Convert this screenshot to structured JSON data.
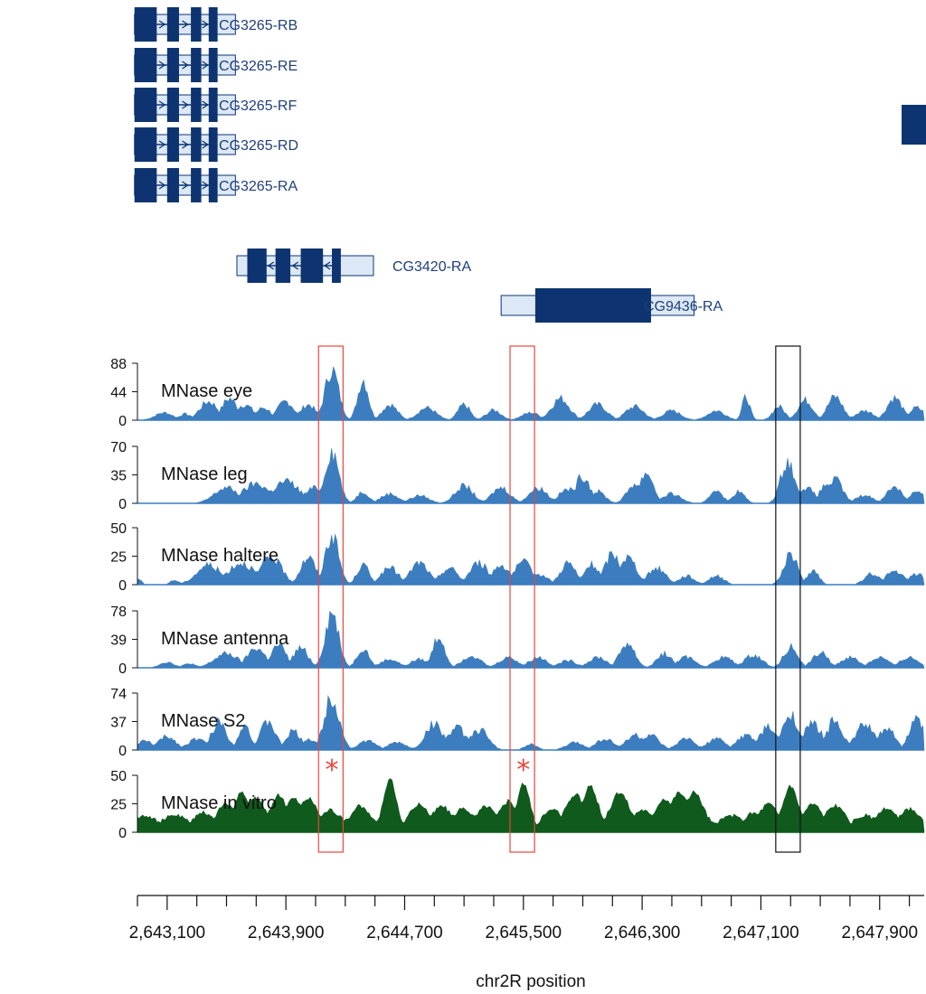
{
  "chart_data": {
    "type": "area",
    "chromosome": "chr2R",
    "xlabel": "chr2R position",
    "xlim": [
      2642900,
      2648200
    ],
    "x_tick_labels": [
      "2,643,100",
      "2,643,900",
      "2,644,700",
      "2,645,500",
      "2,646,300",
      "2,647,100",
      "2,647,900"
    ],
    "x_tick_values": [
      2643100,
      2643900,
      2644700,
      2645500,
      2646300,
      2647100,
      2647900
    ],
    "colors": {
      "gene": "#0d3470",
      "utr_fill": "#dce8f6",
      "tissue": "#3c7dbf",
      "in_vitro": "#0f5a1c",
      "highlight_red": "#e8453c",
      "highlight_black": "#111111"
    },
    "genes": [
      {
        "name": "CG3265-RB",
        "strand": "+",
        "start": 2642880,
        "end": 2643560,
        "cds": [
          [
            2642880,
            2643030
          ],
          [
            2643100,
            2643180
          ],
          [
            2643260,
            2643330
          ],
          [
            2643380,
            2643440
          ]
        ]
      },
      {
        "name": "CG3265-RE",
        "strand": "+",
        "start": 2642880,
        "end": 2643560,
        "cds": [
          [
            2642880,
            2643030
          ],
          [
            2643100,
            2643180
          ],
          [
            2643260,
            2643330
          ],
          [
            2643380,
            2643440
          ]
        ]
      },
      {
        "name": "CG3265-RF",
        "strand": "+",
        "start": 2642880,
        "end": 2643560,
        "cds": [
          [
            2642880,
            2643030
          ],
          [
            2643100,
            2643180
          ],
          [
            2643260,
            2643330
          ],
          [
            2643380,
            2643440
          ]
        ]
      },
      {
        "name": "CG3265-RD",
        "strand": "+",
        "start": 2642880,
        "end": 2643560,
        "cds": [
          [
            2642880,
            2643030
          ],
          [
            2643100,
            2643180
          ],
          [
            2643260,
            2643330
          ],
          [
            2643380,
            2643440
          ]
        ]
      },
      {
        "name": "CG3265-RA",
        "strand": "+",
        "start": 2642880,
        "end": 2643560,
        "cds": [
          [
            2642880,
            2643030
          ],
          [
            2643100,
            2643180
          ],
          [
            2643260,
            2643330
          ],
          [
            2643380,
            2643440
          ]
        ]
      },
      {
        "name": "CG3420-RA",
        "strand": "-",
        "start": 2643570,
        "end": 2644490,
        "cds": [
          [
            2643640,
            2643770
          ],
          [
            2643830,
            2643930
          ],
          [
            2644000,
            2644150
          ],
          [
            2644210,
            2644270
          ]
        ]
      },
      {
        "name": "CG9436-RA",
        "strand": "+",
        "start": 2645350,
        "end": 2646650,
        "cds": [
          [
            2645580,
            2646360
          ]
        ]
      }
    ],
    "off_screen_gene_block": {
      "start": 2648080,
      "end": 2648300
    },
    "tracks": [
      {
        "name": "MNase eye",
        "ticks": [
          0,
          44,
          88
        ],
        "ymax": 88,
        "color": "tissue",
        "peaks": [
          [
            2643080,
            12,
            60
          ],
          [
            2643220,
            10,
            40
          ],
          [
            2643380,
            30,
            60
          ],
          [
            2643520,
            35,
            50
          ],
          [
            2643620,
            25,
            60
          ],
          [
            2643750,
            20,
            50
          ],
          [
            2643900,
            30,
            55
          ],
          [
            2644050,
            25,
            50
          ],
          [
            2644210,
            82,
            45
          ],
          [
            2644420,
            66,
            35
          ],
          [
            2644600,
            25,
            50
          ],
          [
            2644850,
            20,
            60
          ],
          [
            2645100,
            25,
            40
          ],
          [
            2645300,
            16,
            50
          ],
          [
            2645550,
            12,
            60
          ],
          [
            2645750,
            35,
            60
          ],
          [
            2646000,
            25,
            60
          ],
          [
            2646250,
            22,
            60
          ],
          [
            2646500,
            15,
            60
          ],
          [
            2646800,
            15,
            60
          ],
          [
            2647000,
            38,
            25
          ],
          [
            2647220,
            22,
            40
          ],
          [
            2647400,
            32,
            50
          ],
          [
            2647600,
            38,
            50
          ],
          [
            2647800,
            15,
            60
          ],
          [
            2648000,
            36,
            50
          ],
          [
            2648150,
            20,
            50
          ]
        ]
      },
      {
        "name": "MNase leg",
        "ticks": [
          0,
          35,
          70
        ],
        "ymax": 70,
        "color": "tissue",
        "peaks": [
          [
            2643500,
            20,
            80
          ],
          [
            2643700,
            25,
            90
          ],
          [
            2643900,
            28,
            90
          ],
          [
            2644100,
            20,
            70
          ],
          [
            2644210,
            68,
            45
          ],
          [
            2644420,
            15,
            40
          ],
          [
            2644600,
            12,
            60
          ],
          [
            2644800,
            10,
            60
          ],
          [
            2645100,
            22,
            60
          ],
          [
            2645350,
            20,
            60
          ],
          [
            2645600,
            20,
            60
          ],
          [
            2645800,
            18,
            60
          ],
          [
            2645900,
            35,
            50
          ],
          [
            2646000,
            15,
            50
          ],
          [
            2646250,
            25,
            50
          ],
          [
            2646330,
            40,
            45
          ],
          [
            2646500,
            12,
            60
          ],
          [
            2646800,
            18,
            40
          ],
          [
            2646950,
            15,
            40
          ],
          [
            2647280,
            55,
            45
          ],
          [
            2647400,
            20,
            60
          ],
          [
            2647550,
            25,
            50
          ],
          [
            2647600,
            30,
            50
          ],
          [
            2647800,
            10,
            60
          ],
          [
            2648000,
            22,
            50
          ],
          [
            2648150,
            15,
            50
          ]
        ]
      },
      {
        "name": "MNase haltere",
        "ticks": [
          0,
          25,
          50
        ],
        "ymax": 50,
        "color": "tissue",
        "peaks": [
          [
            2642910,
            5,
            20
          ],
          [
            2643150,
            4,
            30
          ],
          [
            2643380,
            18,
            80
          ],
          [
            2643600,
            20,
            90
          ],
          [
            2643800,
            25,
            70
          ],
          [
            2644050,
            25,
            50
          ],
          [
            2644210,
            45,
            45
          ],
          [
            2644420,
            18,
            40
          ],
          [
            2644600,
            15,
            60
          ],
          [
            2644800,
            20,
            60
          ],
          [
            2645000,
            15,
            60
          ],
          [
            2645200,
            20,
            60
          ],
          [
            2645350,
            18,
            60
          ],
          [
            2645500,
            20,
            60
          ],
          [
            2645600,
            10,
            60
          ],
          [
            2645800,
            20,
            50
          ],
          [
            2645960,
            18,
            50
          ],
          [
            2646100,
            28,
            50
          ],
          [
            2646200,
            25,
            60
          ],
          [
            2646400,
            15,
            60
          ],
          [
            2646600,
            8,
            50
          ],
          [
            2646800,
            8,
            50
          ],
          [
            2647300,
            28,
            45
          ],
          [
            2647450,
            12,
            40
          ],
          [
            2647850,
            10,
            50
          ],
          [
            2648000,
            12,
            60
          ],
          [
            2648150,
            10,
            50
          ]
        ]
      },
      {
        "name": "MNase antenna",
        "ticks": [
          0,
          39,
          78
        ],
        "ymax": 78,
        "color": "tissue",
        "peaks": [
          [
            2643100,
            8,
            50
          ],
          [
            2643250,
            6,
            40
          ],
          [
            2643500,
            20,
            80
          ],
          [
            2643700,
            28,
            60
          ],
          [
            2643850,
            32,
            50
          ],
          [
            2644000,
            28,
            50
          ],
          [
            2644210,
            78,
            45
          ],
          [
            2644420,
            28,
            40
          ],
          [
            2644600,
            12,
            60
          ],
          [
            2644800,
            12,
            60
          ],
          [
            2644930,
            45,
            40
          ],
          [
            2645150,
            18,
            60
          ],
          [
            2645400,
            15,
            60
          ],
          [
            2645600,
            15,
            60
          ],
          [
            2645800,
            10,
            60
          ],
          [
            2646000,
            15,
            60
          ],
          [
            2646200,
            35,
            50
          ],
          [
            2646450,
            20,
            50
          ],
          [
            2646600,
            15,
            60
          ],
          [
            2646850,
            15,
            60
          ],
          [
            2647050,
            18,
            60
          ],
          [
            2647300,
            30,
            45
          ],
          [
            2647500,
            22,
            50
          ],
          [
            2647700,
            15,
            60
          ],
          [
            2647900,
            15,
            60
          ],
          [
            2648100,
            15,
            60
          ]
        ]
      },
      {
        "name": "MNase S2",
        "ticks": [
          0,
          37,
          74
        ],
        "ymax": 74,
        "color": "tissue",
        "peaks": [
          [
            2642950,
            12,
            60
          ],
          [
            2643100,
            18,
            60
          ],
          [
            2643300,
            15,
            60
          ],
          [
            2643450,
            38,
            50
          ],
          [
            2643620,
            35,
            40
          ],
          [
            2643780,
            38,
            50
          ],
          [
            2643950,
            25,
            50
          ],
          [
            2644050,
            15,
            60
          ],
          [
            2644210,
            72,
            50
          ],
          [
            2644450,
            12,
            60
          ],
          [
            2644650,
            10,
            60
          ],
          [
            2644900,
            35,
            60
          ],
          [
            2645050,
            30,
            60
          ],
          [
            2645200,
            28,
            60
          ],
          [
            2645550,
            8,
            40
          ],
          [
            2645850,
            10,
            60
          ],
          [
            2646050,
            15,
            60
          ],
          [
            2646250,
            20,
            60
          ],
          [
            2646350,
            20,
            60
          ],
          [
            2646600,
            15,
            60
          ],
          [
            2646800,
            15,
            60
          ],
          [
            2647000,
            20,
            60
          ],
          [
            2647150,
            30,
            60
          ],
          [
            2647300,
            50,
            50
          ],
          [
            2647450,
            35,
            60
          ],
          [
            2647600,
            42,
            50
          ],
          [
            2647800,
            35,
            60
          ],
          [
            2647950,
            32,
            50
          ],
          [
            2648150,
            40,
            50
          ]
        ]
      },
      {
        "name": "MNase in vitro",
        "ticks": [
          0,
          25,
          50
        ],
        "ymax": 50,
        "color": "in_vitro",
        "peaks": [
          [
            2642950,
            10,
            70
          ],
          [
            2643150,
            10,
            70
          ],
          [
            2643350,
            12,
            70
          ],
          [
            2643500,
            20,
            60
          ],
          [
            2643600,
            30,
            50
          ],
          [
            2643700,
            25,
            60
          ],
          [
            2643850,
            28,
            50
          ],
          [
            2643950,
            25,
            60
          ],
          [
            2644050,
            25,
            60
          ],
          [
            2644200,
            15,
            60
          ],
          [
            2644400,
            18,
            60
          ],
          [
            2644600,
            42,
            40
          ],
          [
            2644800,
            20,
            60
          ],
          [
            2644950,
            18,
            60
          ],
          [
            2645100,
            16,
            60
          ],
          [
            2645250,
            18,
            60
          ],
          [
            2645400,
            22,
            60
          ],
          [
            2645500,
            38,
            40
          ],
          [
            2645700,
            15,
            60
          ],
          [
            2645850,
            28,
            60
          ],
          [
            2645950,
            35,
            50
          ],
          [
            2646150,
            30,
            60
          ],
          [
            2646300,
            15,
            60
          ],
          [
            2646450,
            25,
            60
          ],
          [
            2646550,
            30,
            60
          ],
          [
            2646650,
            30,
            60
          ],
          [
            2646900,
            10,
            60
          ],
          [
            2647050,
            12,
            60
          ],
          [
            2647150,
            20,
            60
          ],
          [
            2647300,
            35,
            50
          ],
          [
            2647450,
            20,
            60
          ],
          [
            2647600,
            18,
            60
          ],
          [
            2647800,
            10,
            60
          ],
          [
            2647950,
            16,
            60
          ],
          [
            2648100,
            15,
            60
          ]
        ]
      }
    ],
    "highlight_boxes": [
      {
        "color": "highlight_red",
        "start": 2644120,
        "end": 2644285
      },
      {
        "color": "highlight_red",
        "start": 2645410,
        "end": 2645575
      },
      {
        "color": "highlight_black",
        "start": 2647200,
        "end": 2647365
      }
    ],
    "asterisks": [
      {
        "symbol": "*",
        "x": 2644210,
        "color": "highlight_red"
      },
      {
        "symbol": "*",
        "x": 2645500,
        "color": "highlight_red"
      }
    ]
  }
}
